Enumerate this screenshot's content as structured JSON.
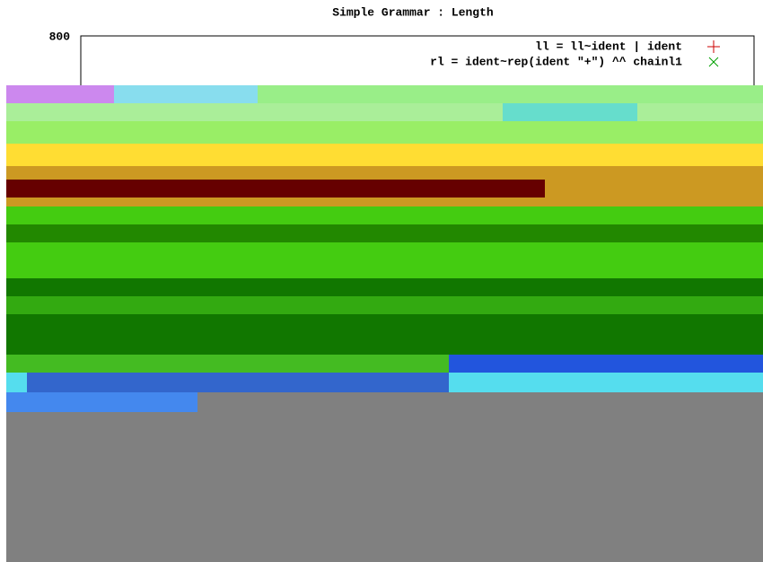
{
  "chart_data": {
    "type": "line",
    "title": "Simple Grammar : Length",
    "yticks": [
      800
    ],
    "series": [
      {
        "name": "ll = ll~ident | ident",
        "color": "#cc0000"
      },
      {
        "name": "rl = ident~rep(ident \"+\") ^^ chainl1",
        "color": "#00a000"
      }
    ]
  }
}
